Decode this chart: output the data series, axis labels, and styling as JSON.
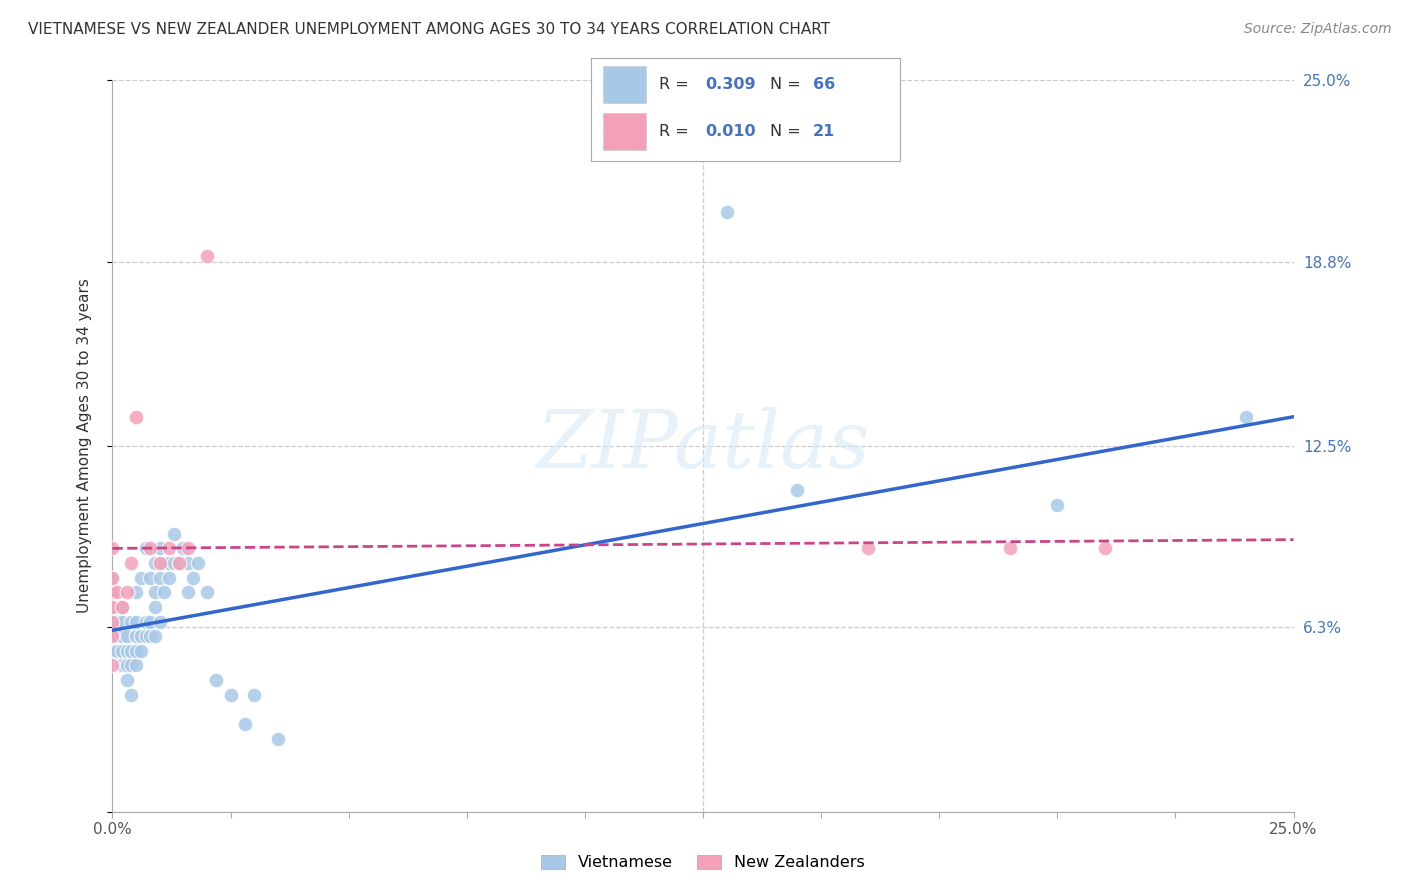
{
  "title": "VIETNAMESE VS NEW ZEALANDER UNEMPLOYMENT AMONG AGES 30 TO 34 YEARS CORRELATION CHART",
  "source": "Source: ZipAtlas.com",
  "ylabel": "Unemployment Among Ages 30 to 34 years",
  "xlim": [
    0.0,
    0.25
  ],
  "ylim": [
    0.0,
    0.25
  ],
  "yticks": [
    0.0,
    0.063,
    0.125,
    0.188,
    0.25
  ],
  "right_ytick_labels": [
    "",
    "6.3%",
    "12.5%",
    "18.8%",
    "25.0%"
  ],
  "right_yticks": [
    0.0,
    0.063,
    0.125,
    0.188,
    0.25
  ],
  "grid_color": "#cccccc",
  "background_color": "#ffffff",
  "watermark": "ZIPatlas",
  "legend_R1": "0.309",
  "legend_N1": "66",
  "legend_R2": "0.010",
  "legend_N2": "21",
  "viet_color": "#a8c8e8",
  "nz_color": "#f4a0b8",
  "viet_line_color": "#3366cc",
  "nz_line_color": "#cc4488",
  "viet_x": [
    0.0,
    0.0,
    0.0,
    0.0,
    0.0,
    0.0,
    0.001,
    0.001,
    0.001,
    0.001,
    0.002,
    0.002,
    0.002,
    0.002,
    0.002,
    0.003,
    0.003,
    0.003,
    0.003,
    0.004,
    0.004,
    0.004,
    0.004,
    0.005,
    0.005,
    0.005,
    0.005,
    0.005,
    0.006,
    0.006,
    0.006,
    0.007,
    0.007,
    0.007,
    0.008,
    0.008,
    0.008,
    0.009,
    0.009,
    0.009,
    0.009,
    0.01,
    0.01,
    0.01,
    0.011,
    0.011,
    0.012,
    0.012,
    0.013,
    0.013,
    0.014,
    0.015,
    0.016,
    0.016,
    0.017,
    0.018,
    0.02,
    0.022,
    0.025,
    0.028,
    0.03,
    0.035,
    0.13,
    0.145,
    0.2,
    0.24
  ],
  "viet_y": [
    0.055,
    0.06,
    0.065,
    0.07,
    0.075,
    0.08,
    0.055,
    0.06,
    0.065,
    0.07,
    0.05,
    0.055,
    0.06,
    0.065,
    0.07,
    0.045,
    0.05,
    0.055,
    0.06,
    0.04,
    0.05,
    0.055,
    0.065,
    0.05,
    0.055,
    0.06,
    0.065,
    0.075,
    0.055,
    0.06,
    0.08,
    0.06,
    0.065,
    0.09,
    0.06,
    0.065,
    0.08,
    0.06,
    0.07,
    0.075,
    0.085,
    0.065,
    0.08,
    0.09,
    0.075,
    0.085,
    0.08,
    0.085,
    0.085,
    0.095,
    0.085,
    0.09,
    0.075,
    0.085,
    0.08,
    0.085,
    0.075,
    0.045,
    0.04,
    0.03,
    0.04,
    0.025,
    0.205,
    0.11,
    0.105,
    0.135
  ],
  "nz_x": [
    0.0,
    0.0,
    0.0,
    0.0,
    0.0,
    0.0,
    0.0,
    0.001,
    0.002,
    0.003,
    0.004,
    0.005,
    0.008,
    0.01,
    0.012,
    0.014,
    0.016,
    0.02,
    0.16,
    0.19,
    0.21
  ],
  "nz_y": [
    0.05,
    0.06,
    0.065,
    0.07,
    0.075,
    0.08,
    0.09,
    0.075,
    0.07,
    0.075,
    0.085,
    0.135,
    0.09,
    0.085,
    0.09,
    0.085,
    0.09,
    0.19,
    0.09,
    0.09,
    0.09
  ],
  "viet_line_x0": 0.0,
  "viet_line_x1": 0.25,
  "viet_line_y0": 0.062,
  "viet_line_y1": 0.135,
  "nz_line_x0": 0.0,
  "nz_line_x1": 0.25,
  "nz_line_y0": 0.09,
  "nz_line_y1": 0.093
}
